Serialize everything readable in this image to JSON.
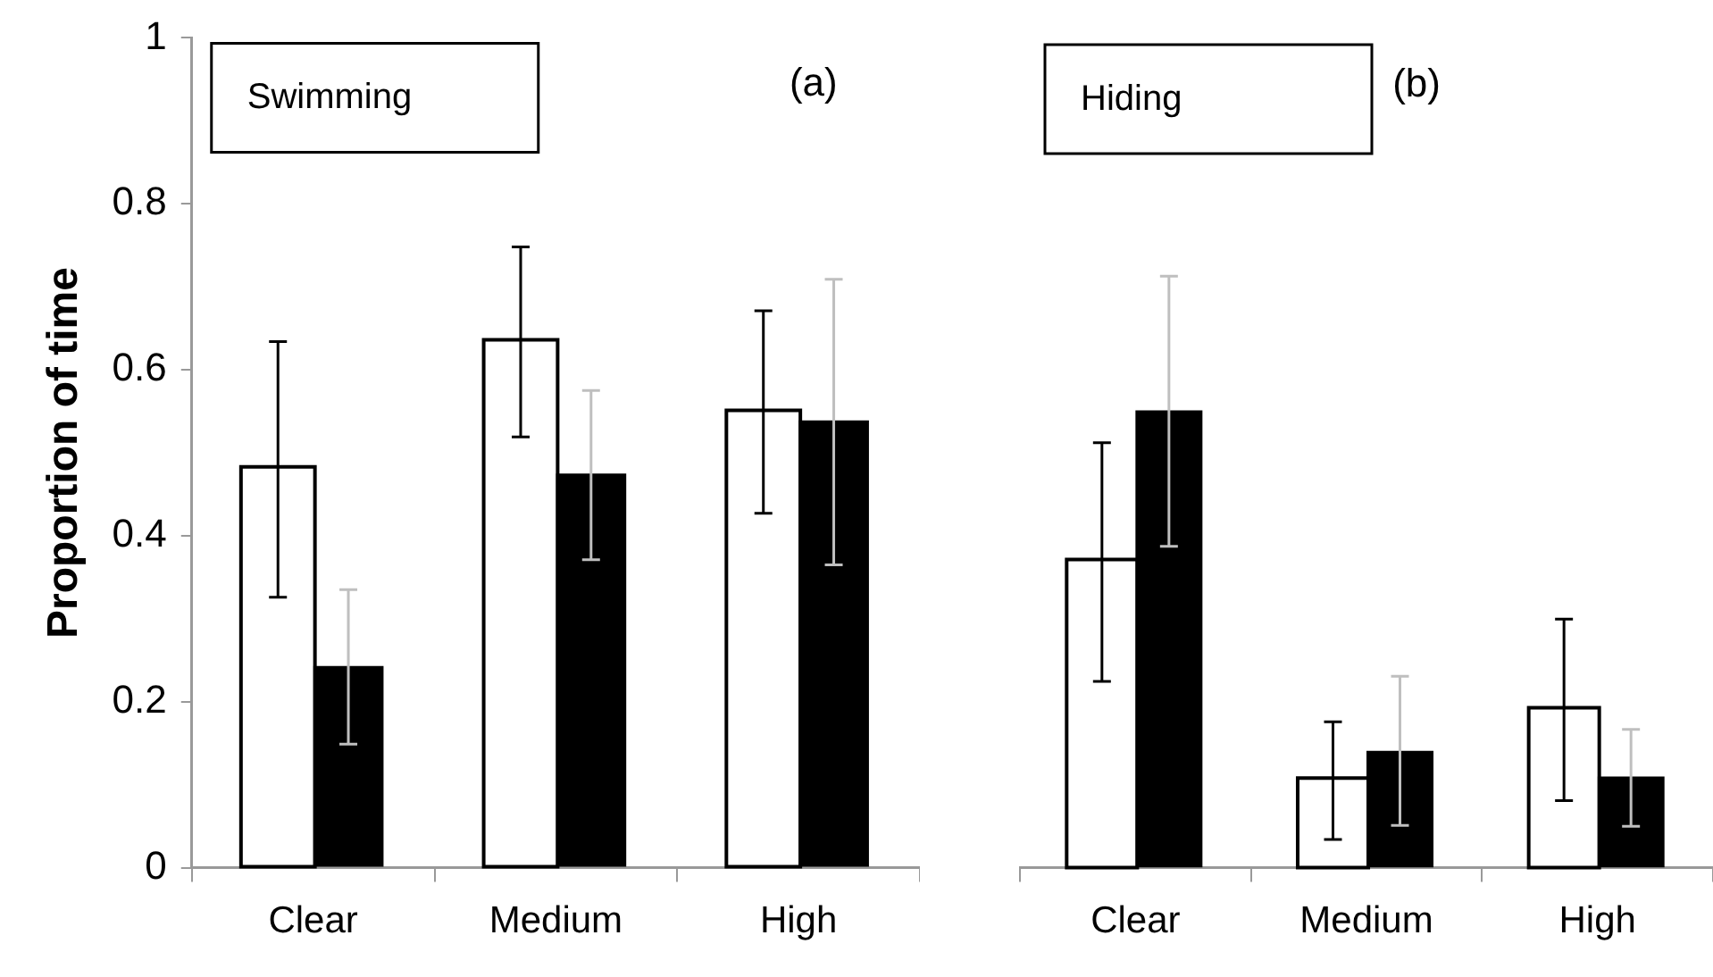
{
  "chart_data": [
    {
      "type": "bar",
      "title": "Swimming",
      "ylabel": "Proportion of time",
      "annotations": [
        "(a)"
      ],
      "categories": [
        "Clear",
        "Medium",
        "High"
      ],
      "ylim": [
        0,
        1
      ],
      "yticks": [
        0,
        0.2,
        0.4,
        0.6,
        0.8,
        1
      ],
      "grid": false,
      "legend": false,
      "series": [
        {
          "color": "#ffffff",
          "values": [
            0.481,
            0.634,
            0.549
          ],
          "errors": [
            [
              0.326,
              0.634
            ],
            [
              0.519,
              0.748
            ],
            [
              0.427,
              0.671
            ]
          ]
        },
        {
          "color": "#000000",
          "values": [
            0.243,
            0.475,
            0.539
          ],
          "errors": [
            [
              0.149,
              0.335
            ],
            [
              0.371,
              0.575
            ],
            [
              0.365,
              0.709
            ]
          ]
        }
      ]
    },
    {
      "type": "bar",
      "title": "Hiding",
      "annotations": [
        "(b)"
      ],
      "categories": [
        "Clear",
        "Medium",
        "High"
      ],
      "ylim": [
        0,
        1
      ],
      "yticks": [
        0,
        0.2,
        0.4,
        0.6,
        0.8,
        1
      ],
      "tick_labels": "x",
      "grid": false,
      "legend": false,
      "series": [
        {
          "color": "#ffffff",
          "values": [
            0.37,
            0.106,
            0.191
          ],
          "errors": [
            [
              0.225,
              0.513
            ],
            [
              0.034,
              0.176
            ],
            [
              0.081,
              0.3
            ]
          ]
        },
        {
          "color": "#000000",
          "values": [
            0.552,
            0.141,
            0.11
          ],
          "errors": [
            [
              0.388,
              0.714
            ],
            [
              0.051,
              0.231
            ],
            [
              0.05,
              0.167
            ]
          ]
        }
      ]
    }
  ]
}
